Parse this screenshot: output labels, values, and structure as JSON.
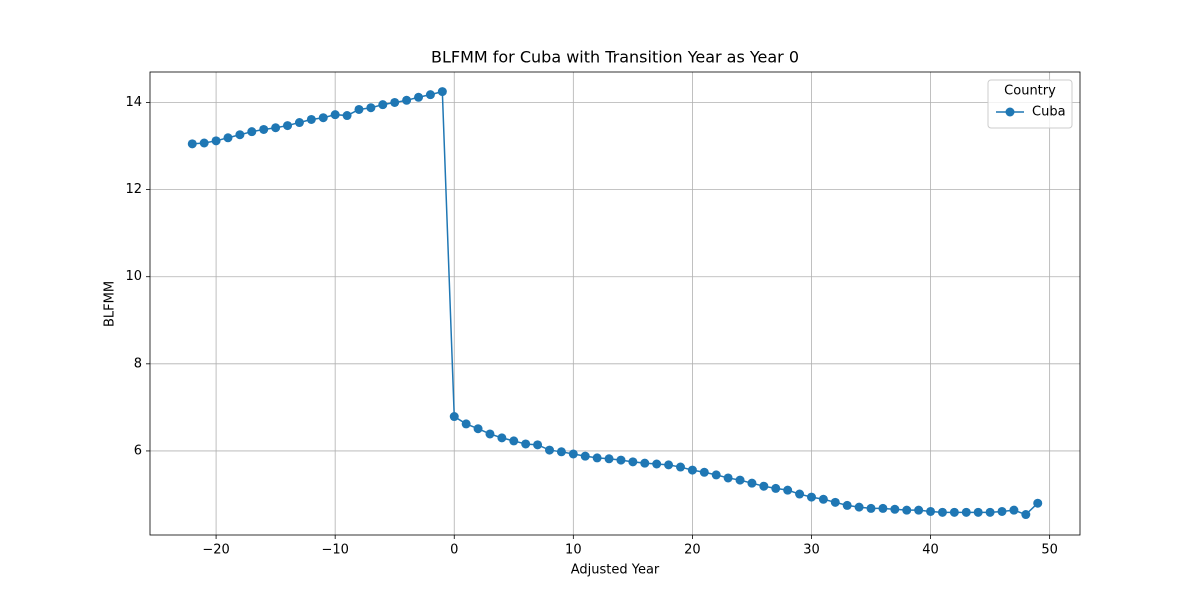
{
  "chart_data": {
    "type": "line",
    "title": "BLFMM for Cuba with Transition Year as Year 0",
    "xlabel": "Adjusted Year",
    "ylabel": "BLFMM",
    "x": [
      -22,
      -21,
      -20,
      -19,
      -18,
      -17,
      -16,
      -15,
      -14,
      -13,
      -12,
      -11,
      -10,
      -9,
      -8,
      -7,
      -6,
      -5,
      -4,
      -3,
      -2,
      -1,
      0,
      1,
      2,
      3,
      4,
      5,
      6,
      7,
      8,
      9,
      10,
      11,
      12,
      13,
      14,
      15,
      16,
      17,
      18,
      19,
      20,
      21,
      22,
      23,
      24,
      25,
      26,
      27,
      28,
      29,
      30,
      31,
      32,
      33,
      34,
      35,
      36,
      37,
      38,
      39,
      40,
      41,
      42,
      43,
      44,
      45,
      46,
      47,
      48,
      49
    ],
    "series": [
      {
        "name": "Cuba",
        "color": "#1f77b4",
        "values": [
          13.05,
          13.07,
          13.12,
          13.19,
          13.26,
          13.33,
          13.38,
          13.42,
          13.47,
          13.54,
          13.61,
          13.65,
          13.72,
          13.7,
          13.84,
          13.88,
          13.95,
          14.0,
          14.05,
          14.12,
          14.18,
          14.25,
          6.79,
          6.62,
          6.51,
          6.39,
          6.3,
          6.23,
          6.16,
          6.14,
          6.02,
          5.98,
          5.93,
          5.88,
          5.84,
          5.82,
          5.79,
          5.75,
          5.72,
          5.7,
          5.68,
          5.63,
          5.56,
          5.51,
          5.45,
          5.38,
          5.33,
          5.26,
          5.19,
          5.14,
          5.1,
          5.01,
          4.94,
          4.89,
          4.82,
          4.75,
          4.71,
          4.68,
          4.68,
          4.66,
          4.64,
          4.64,
          4.61,
          4.59,
          4.59,
          4.59,
          4.59,
          4.59,
          4.61,
          4.64,
          4.54,
          4.8
        ]
      }
    ],
    "xlim": [
      -25.55,
      52.55
    ],
    "xticks": [
      {
        "value": -20,
        "label": "−20"
      },
      {
        "value": -10,
        "label": "−10"
      },
      0,
      10,
      20,
      30,
      40,
      50
    ],
    "ylim": [
      4.07,
      14.7
    ],
    "yticks": [
      6,
      8,
      10,
      12,
      14
    ],
    "grid": true,
    "legend_title": "Country",
    "legend_loc": "upper right"
  }
}
